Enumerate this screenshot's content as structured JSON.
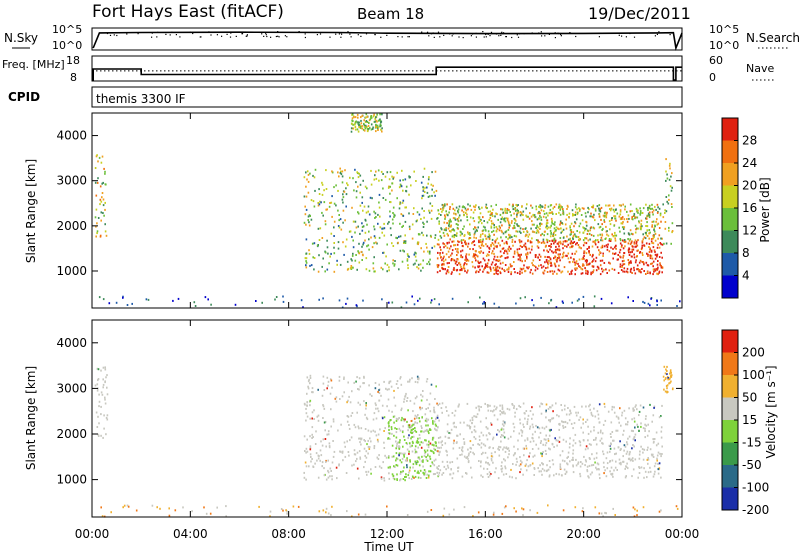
{
  "header": {
    "site": "Fort Hays East (fitACF)",
    "beam": "Beam 18",
    "date": "19/Dec/2011"
  },
  "chart_data": [
    {
      "type": "line",
      "panel": "noise",
      "left_label": "N.Sky",
      "right_label": "N.Search",
      "left_ticks": [
        "10^5",
        "10^0"
      ],
      "right_ticks": [
        "10^5",
        "10^0"
      ],
      "ylim_log10": [
        0,
        5
      ],
      "series": [
        {
          "name": "N.Sky",
          "x_hours": [
            0.05,
            0.3,
            2,
            6,
            10,
            12,
            16,
            20,
            23,
            23.65,
            23.75,
            24
          ],
          "log10_values": [
            0,
            4.2,
            4.3,
            4.4,
            4.3,
            4.1,
            4.0,
            4.05,
            4.2,
            4.25,
            0,
            4.2
          ]
        },
        {
          "name": "N.Search",
          "x_hours": [
            0,
            24
          ],
          "log10_values": [
            null,
            null
          ]
        }
      ]
    },
    {
      "type": "line",
      "panel": "frequency",
      "left_label": "Freq. [MHz]",
      "right_label": "Nave",
      "left_ticks": [
        "18",
        "8"
      ],
      "right_ticks": [
        "60",
        "0"
      ],
      "freq_mhz": {
        "x_hours": [
          0,
          0.05,
          0.05,
          2,
          2,
          14,
          14,
          23.65,
          23.65,
          23.75,
          23.75,
          24
        ],
        "values": [
          8,
          8,
          13,
          13,
          10.5,
          10.5,
          13.8,
          13.8,
          8,
          8,
          13.8,
          13.8
        ]
      },
      "nave": {
        "x_hours": [
          0,
          24
        ],
        "values": [
          25,
          25
        ]
      }
    },
    {
      "type": "table",
      "panel": "cpid",
      "label": "CPID",
      "program": "themis 3300 IF"
    },
    {
      "type": "heatmap",
      "panel": "power",
      "ylabel": "Slant Range [km]",
      "yticks": [
        1000,
        2000,
        3000,
        4000
      ],
      "ylim": [
        180,
        4500
      ],
      "xlim_hours": [
        0,
        24
      ],
      "colorbar": {
        "label": "Power [dB]",
        "ticks": [
          "28",
          "24",
          "20",
          "16",
          "12",
          "8",
          "4"
        ],
        "colors": [
          "#0000cc",
          "#1e5aa8",
          "#3d8a5a",
          "#6bbf3a",
          "#c8d020",
          "#f0a020",
          "#f07010",
          "#e02010"
        ]
      },
      "scatter_regions": [
        {
          "x_hours": [
            0.1,
            0.6
          ],
          "range_km": [
            1700,
            3600
          ],
          "level": 0.55
        },
        {
          "x_hours": [
            8.6,
            14.0
          ],
          "range_km": [
            1000,
            3300
          ],
          "level": 0.45
        },
        {
          "x_hours": [
            14.0,
            23.2
          ],
          "range_km": [
            950,
            1700
          ],
          "level": 0.9
        },
        {
          "x_hours": [
            14.0,
            23.2
          ],
          "range_km": [
            1700,
            2500
          ],
          "level": 0.55
        },
        {
          "x_hours": [
            10.5,
            11.8
          ],
          "range_km": [
            4100,
            4500
          ],
          "level": 0.5
        },
        {
          "x_hours": [
            23.2,
            23.6
          ],
          "range_km": [
            1500,
            3500
          ],
          "level": 0.5
        }
      ]
    },
    {
      "type": "heatmap",
      "panel": "velocity",
      "ylabel": "Slant Range [km]",
      "yticks": [
        1000,
        2000,
        3000,
        4000
      ],
      "ylim": [
        180,
        4500
      ],
      "xlim_hours": [
        0,
        24
      ],
      "xticks": [
        "00:00",
        "04:00",
        "08:00",
        "12:00",
        "16:00",
        "20:00",
        "00:00"
      ],
      "xlabel": "Time UT",
      "colorbar": {
        "label": "Velocity [m s⁻¹]",
        "ticks": [
          "200",
          "100",
          "50",
          "15",
          "-15",
          "-50",
          "-100",
          "-200"
        ],
        "colors": [
          "#1a2ea8",
          "#2a6a88",
          "#3a9a4a",
          "#7ed23a",
          "#c8c8c0",
          "#f0b030",
          "#f07818",
          "#e02010"
        ]
      },
      "scatter_regions": [
        {
          "x_hours": [
            0.1,
            0.6
          ],
          "range_km": [
            1900,
            3500
          ],
          "color": "#c8c8c0"
        },
        {
          "x_hours": [
            8.6,
            14.0
          ],
          "range_km": [
            1000,
            3300
          ],
          "color": "#c8c8c0"
        },
        {
          "x_hours": [
            12.0,
            14.0
          ],
          "range_km": [
            1000,
            2400
          ],
          "color": "#7ed23a"
        },
        {
          "x_hours": [
            14.0,
            23.2
          ],
          "range_km": [
            1050,
            2700
          ],
          "color": "#c8c8c0"
        },
        {
          "x_hours": [
            23.2,
            23.6
          ],
          "range_km": [
            2900,
            3500
          ],
          "color": "#f0b030"
        }
      ]
    }
  ]
}
